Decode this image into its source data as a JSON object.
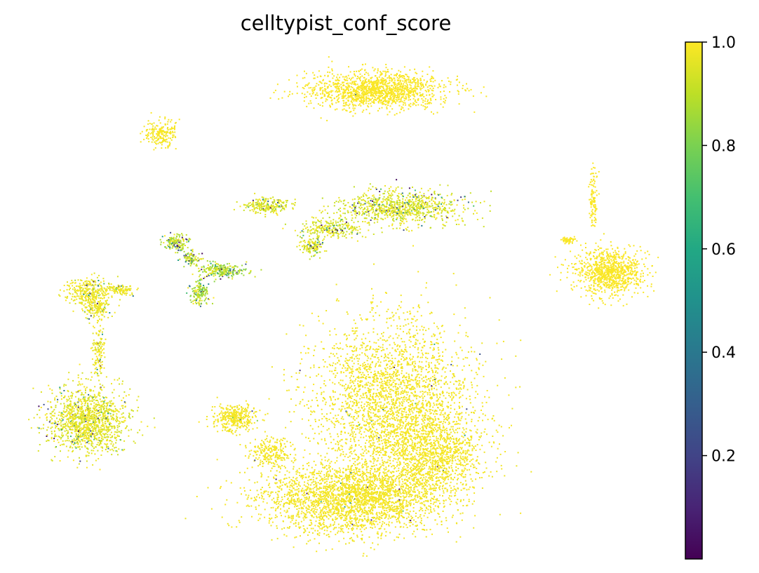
{
  "chart_data": {
    "type": "scatter",
    "title": "celltypist_conf_score",
    "xlabel": "",
    "ylabel": "",
    "axes_visible": false,
    "grid": false,
    "colormap": "viridis",
    "colorbar": {
      "range": [
        0.0,
        1.0
      ],
      "ticks": [
        0.2,
        0.4,
        0.6,
        0.8,
        1.0
      ],
      "tick_labels": [
        "0.2",
        "0.4",
        "0.6",
        "0.8",
        "1.0"
      ],
      "placement": "right"
    },
    "dominant_value": 1.0,
    "clusters": [
      {
        "id": "top-blob",
        "n_points": 1400,
        "mean_score": 0.99,
        "low_fraction": 0.01
      },
      {
        "id": "small-top-left",
        "n_points": 200,
        "mean_score": 0.98,
        "low_fraction": 0.02
      },
      {
        "id": "mid-elongated",
        "n_points": 1500,
        "mean_score": 0.9,
        "low_fraction": 0.1
      },
      {
        "id": "left-horn",
        "n_points": 250,
        "mean_score": 0.85,
        "low_fraction": 0.2
      },
      {
        "id": "branch-cluster",
        "n_points": 400,
        "mean_score": 0.8,
        "low_fraction": 0.2
      },
      {
        "id": "left-upper-loop",
        "n_points": 700,
        "mean_score": 0.95,
        "low_fraction": 0.05
      },
      {
        "id": "left-lower-blob",
        "n_points": 1300,
        "mean_score": 0.92,
        "low_fraction": 0.08
      },
      {
        "id": "right-blob",
        "n_points": 1100,
        "mean_score": 0.99,
        "low_fraction": 0.01
      },
      {
        "id": "main-large-blob",
        "n_points": 6500,
        "mean_score": 0.97,
        "low_fraction": 0.04
      },
      {
        "id": "mid-left-blob",
        "n_points": 600,
        "mean_score": 0.97,
        "low_fraction": 0.03
      }
    ]
  }
}
